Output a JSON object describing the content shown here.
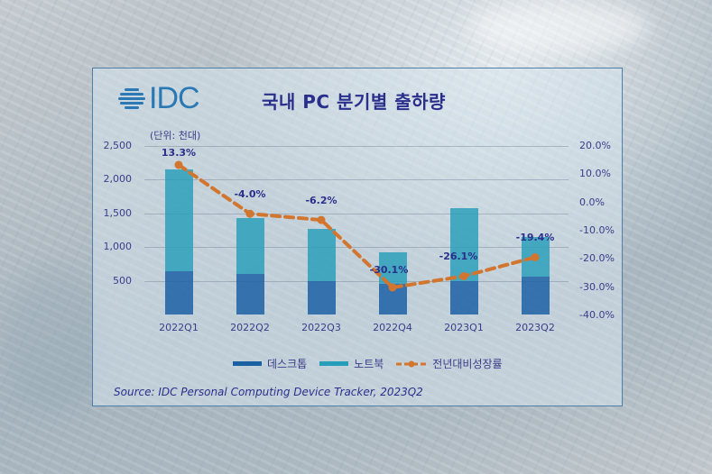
{
  "header": {
    "logo_text": "IDC",
    "title": "국내 PC 분기별 출하량",
    "unit_label": "(단위: 천대)"
  },
  "colors": {
    "desktop": "#1c60a4",
    "notebook": "#269eba",
    "yoy_line": "#d2762f",
    "text": "#2b2f8c",
    "logo": "#2a78b4",
    "panel_border": "#4f7ea6"
  },
  "chart_data": {
    "type": "bar",
    "stacked": true,
    "title": "국내 PC 분기별 출하량",
    "unit": "(단위: 천대)",
    "categories": [
      "2022Q1",
      "2022Q2",
      "2022Q3",
      "2022Q4",
      "2023Q1",
      "2023Q2"
    ],
    "series": [
      {
        "name": "데스크톱",
        "type": "bar",
        "axis": "left",
        "values": [
          640,
          600,
          495,
          455,
          495,
          560
        ]
      },
      {
        "name": "노트북",
        "type": "bar",
        "axis": "left",
        "values": [
          1510,
          830,
          775,
          465,
          1085,
          590
        ]
      },
      {
        "name": "전년대비성장률",
        "type": "line",
        "axis": "right",
        "values": [
          13.3,
          -4.0,
          -6.2,
          -30.1,
          -26.1,
          -19.4
        ],
        "labels": [
          "13.3%",
          "-4.0%",
          "-6.2%",
          "-30.1%",
          "-26.1%",
          "-19.4%"
        ]
      }
    ],
    "totals": [
      2150,
      1430,
      1270,
      920,
      1580,
      1150
    ],
    "y_left": {
      "ticks": [
        "2,500",
        "2,000",
        "1,500",
        "1,000",
        "500"
      ],
      "range": [
        0,
        2500
      ]
    },
    "y_right": {
      "ticks": [
        "20.0%",
        "10.0%",
        "0.0%",
        "-10.0%",
        "-20.0%",
        "-30.0%",
        "-40.0%"
      ],
      "range": [
        -40,
        20
      ]
    },
    "grid": true,
    "legend_position": "bottom",
    "source": "Source: IDC Personal Computing Device Tracker, 2023Q2"
  },
  "legend": {
    "items": [
      {
        "label": "데스크톱"
      },
      {
        "label": "노트북"
      },
      {
        "label": "전년대비성장률"
      }
    ]
  },
  "footer": {
    "source": "Source: IDC Personal Computing Device Tracker, 2023Q2"
  }
}
